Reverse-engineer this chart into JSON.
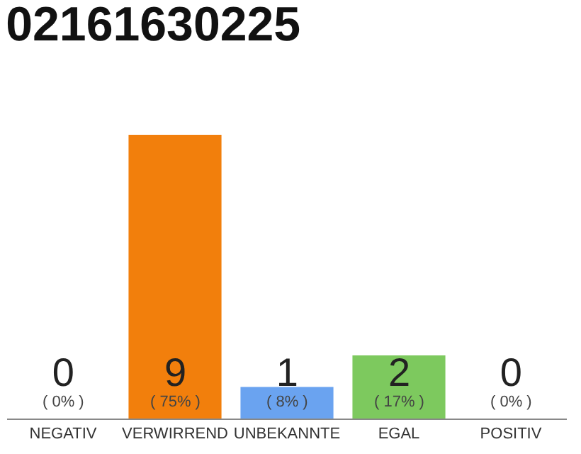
{
  "chart_data": {
    "type": "bar",
    "title": "02161630225",
    "categories": [
      "NEGATIV",
      "VERWIRREND",
      "UNBEKANNTE",
      "EGAL",
      "POSITIV"
    ],
    "values": [
      0,
      9,
      1,
      2,
      0
    ],
    "colors": [
      "#eeeeee",
      "#f27f0c",
      "#6aa3f0",
      "#7dc95e",
      "#eeeeee"
    ],
    "value_labels": [
      "0\n( 0% )",
      "9\n( 75% )",
      "1\n( 8% )",
      "2\n( 17% )",
      "0\n( 0% )"
    ]
  }
}
